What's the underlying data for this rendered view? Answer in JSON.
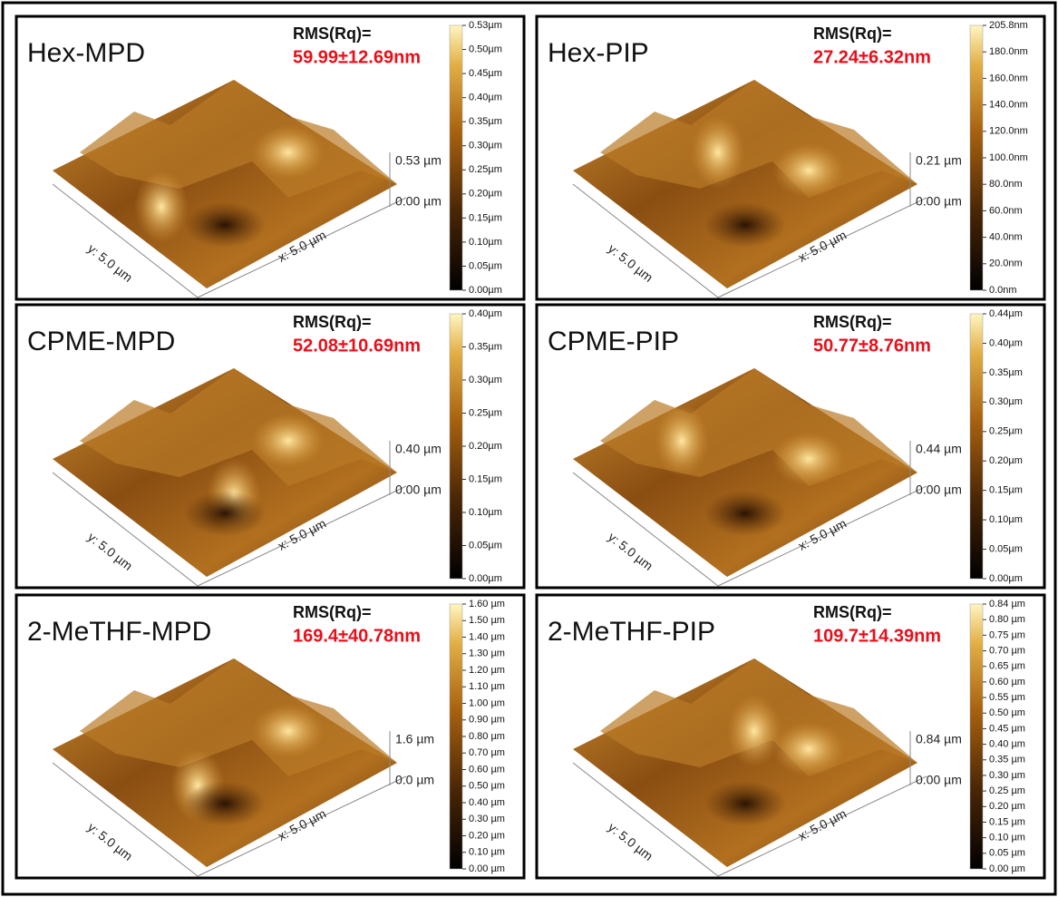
{
  "panels": [
    {
      "title": "Hex-MPD",
      "rms_label": "RMS(Rq)=",
      "rms_value": "59.99±12.69nm",
      "z_top": "0.53 µm",
      "z_bottom": "0.00 µm",
      "y_label": "y: 5.0 µm",
      "x_label": "x: 5.0 µm",
      "scale": [
        "0.53µm",
        "0.50µm",
        "0.45µm",
        "0.40µm",
        "0.35µm",
        "0.30µm",
        "0.25µm",
        "0.20µm",
        "0.15µm",
        "0.10µm",
        "0.05µm",
        "0.00µm"
      ]
    },
    {
      "title": "Hex-PIP",
      "rms_label": "RMS(Rq)=",
      "rms_value": "27.24±6.32nm",
      "z_top": "0.21 µm",
      "z_bottom": "0.00 µm",
      "y_label": "y: 5.0 µm",
      "x_label": "x: 5.0 µm",
      "scale": [
        "205.8nm",
        "180.0nm",
        "160.0nm",
        "140.0nm",
        "120.0nm",
        "100.0nm",
        "80.0nm",
        "60.0nm",
        "40.0nm",
        "20.0nm",
        "0.0nm"
      ]
    },
    {
      "title": "CPME-MPD",
      "rms_label": "RMS(Rq)=",
      "rms_value": "52.08±10.69nm",
      "z_top": "0.40 µm",
      "z_bottom": "0.00 µm",
      "y_label": "y: 5.0 µm",
      "x_label": "x: 5.0 µm",
      "scale": [
        "0.40µm",
        "0.35µm",
        "0.30µm",
        "0.25µm",
        "0.20µm",
        "0.15µm",
        "0.10µm",
        "0.05µm",
        "0.00µm"
      ]
    },
    {
      "title": "CPME-PIP",
      "rms_label": "RMS(Rq)=",
      "rms_value": "50.77±8.76nm",
      "z_top": "0.44 µm",
      "z_bottom": "0.00 µm",
      "y_label": "y: 5.0 µm",
      "x_label": "x: 5.0 µm",
      "scale": [
        "0.44µm",
        "0.40µm",
        "0.35µm",
        "0.30µm",
        "0.25µm",
        "0.20µm",
        "0.15µm",
        "0.10µm",
        "0.05µm",
        "0.00µm"
      ]
    },
    {
      "title": "2-MeTHF-MPD",
      "rms_label": "RMS(Rq)=",
      "rms_value": "169.4±40.78nm",
      "z_top": "1.6 µm",
      "z_bottom": "0.0 µm",
      "y_label": "y: 5.0 µm",
      "x_label": "x: 5.0 µm",
      "scale": [
        "1.60 µm",
        "1.50 µm",
        "1.40 µm",
        "1.30 µm",
        "1.20 µm",
        "1.10 µm",
        "1.00 µm",
        "0.90 µm",
        "0.80 µm",
        "0.70 µm",
        "0.60 µm",
        "0.50 µm",
        "0.40 µm",
        "0.30 µm",
        "0.20 µm",
        "0.10 µm",
        "0.00 µm"
      ]
    },
    {
      "title": "2-MeTHF-PIP",
      "rms_label": "RMS(Rq)=",
      "rms_value": "109.7±14.39nm",
      "z_top": "0.84 µm",
      "z_bottom": "0.00 µm",
      "y_label": "y: 5.0 µm",
      "x_label": "x: 5.0 µm",
      "scale": [
        "0.84 µm",
        "0.80 µm",
        "0.75 µm",
        "0.70 µm",
        "0.65 µm",
        "0.60 µm",
        "0.55 µm",
        "0.50 µm",
        "0.45 µm",
        "0.40 µm",
        "0.35 µm",
        "0.30 µm",
        "0.25 µm",
        "0.20 µm",
        "0.15 µm",
        "0.10 µm",
        "0.05 µm",
        "0.00 µm"
      ]
    }
  ]
}
